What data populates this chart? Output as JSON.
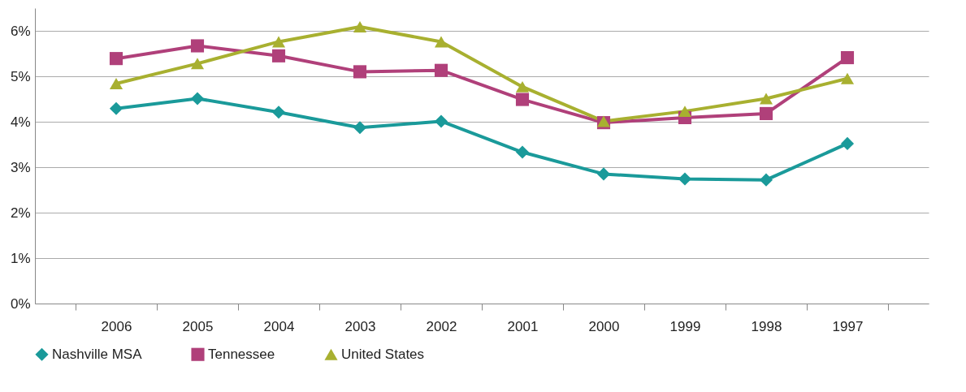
{
  "chart_data": {
    "type": "line",
    "categories": [
      "2006",
      "2005",
      "2004",
      "2003",
      "2002",
      "2001",
      "2000",
      "1999",
      "1998",
      "1997"
    ],
    "series": [
      {
        "name": "Nashville MSA",
        "color": "#1a9a9a",
        "marker": "diamond",
        "values": [
          4.29,
          4.51,
          4.21,
          3.87,
          4.01,
          3.33,
          2.85,
          2.74,
          2.72,
          3.52
        ]
      },
      {
        "name": "Tennessee",
        "color": "#b0407a",
        "marker": "square",
        "values": [
          5.39,
          5.67,
          5.45,
          5.1,
          5.13,
          4.49,
          3.98,
          4.09,
          4.18,
          5.41
        ]
      },
      {
        "name": "United States",
        "color": "#a8b030",
        "marker": "triangle",
        "values": [
          4.84,
          5.28,
          5.76,
          6.09,
          5.76,
          4.77,
          4.01,
          4.23,
          4.51,
          4.95
        ]
      }
    ],
    "ylim": [
      0,
      6.5
    ],
    "yticks": [
      {
        "value": 0,
        "label": "0%"
      },
      {
        "value": 1,
        "label": "1%"
      },
      {
        "value": 2,
        "label": "2%"
      },
      {
        "value": 3,
        "label": "3%"
      },
      {
        "value": 4,
        "label": "4%"
      },
      {
        "value": 5,
        "label": "5%"
      },
      {
        "value": 6,
        "label": "6%"
      }
    ],
    "grid": "y",
    "legend": "bottom",
    "line_style": "solid"
  }
}
